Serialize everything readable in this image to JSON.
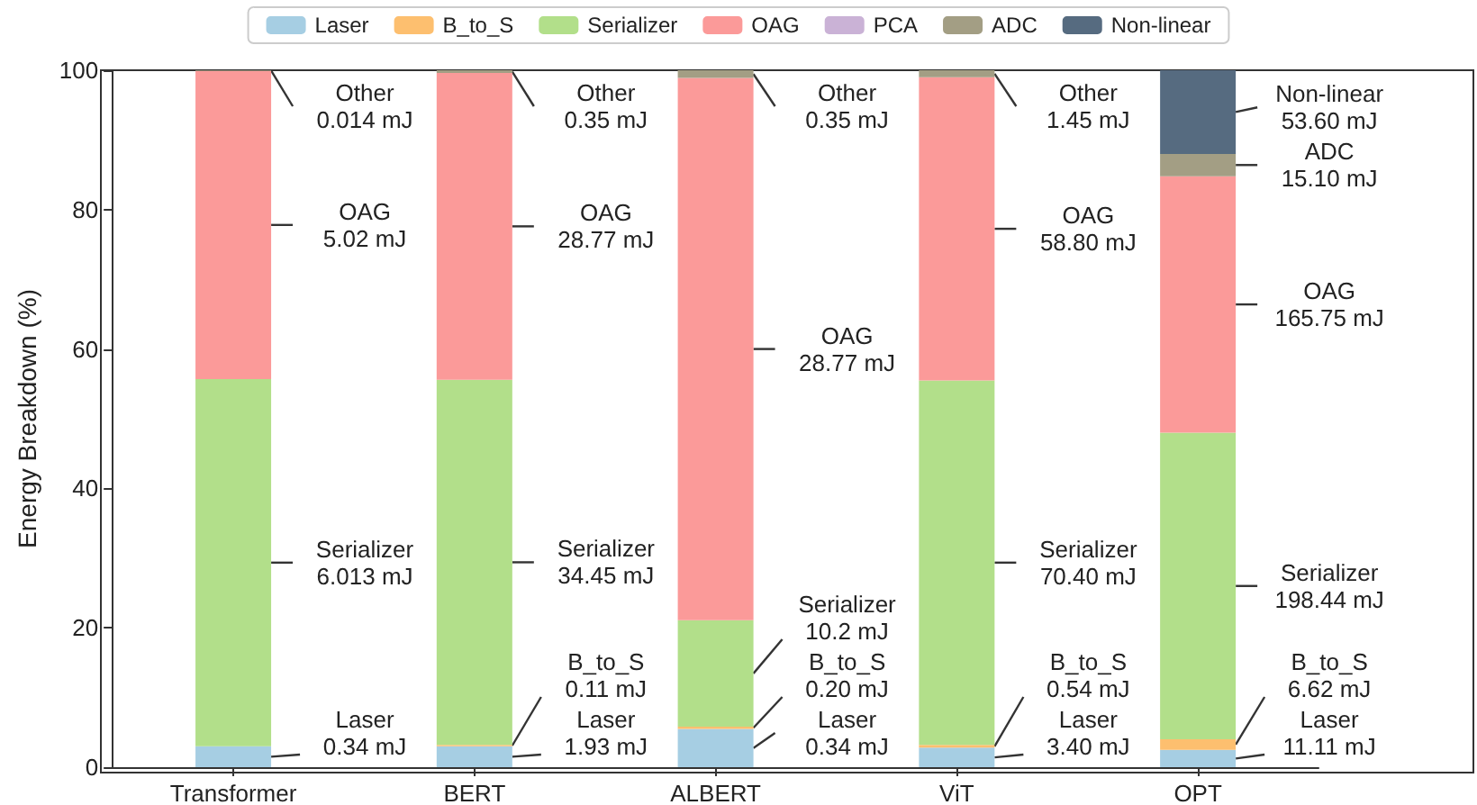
{
  "chart_data": {
    "type": "bar",
    "stacked": true,
    "ylabel": "Energy Breakdown (%)",
    "categories": [
      "Transformer",
      "BERT",
      "ALBERT",
      "ViT",
      "OPT"
    ],
    "ylim": [
      0,
      100
    ],
    "yticks": [
      0,
      20,
      40,
      60,
      80,
      100
    ],
    "grid": false,
    "legend": "top",
    "series": [
      {
        "name": "Laser",
        "color": "#a6cee3",
        "values": [
          3.0,
          3.0,
          5.5,
          2.8,
          2.5
        ],
        "value_labels": [
          "Laser\n0.34 mJ",
          "Laser\n1.93 mJ",
          "Laser\n0.34 mJ",
          "Laser\n3.40 mJ",
          "Laser\n11.11 mJ"
        ]
      },
      {
        "name": "B_to_S",
        "color": "#fdbf6f",
        "values": [
          0,
          0.2,
          0.3,
          0.4,
          1.5
        ],
        "value_labels": [
          null,
          "B_to_S\n0.11 mJ",
          "B_to_S\n0.20 mJ",
          "B_to_S\n0.54 mJ",
          "B_to_S\n6.62 mJ"
        ]
      },
      {
        "name": "Serializer",
        "color": "#b2df8a",
        "values": [
          52.7,
          52.4,
          15.3,
          52.3,
          44.0
        ],
        "value_labels": [
          "Serializer\n6.013 mJ",
          "Serializer\n34.45 mJ",
          "Serializer\n10.2 mJ",
          "Serializer\n70.40 mJ",
          "Serializer\n198.44 mJ"
        ]
      },
      {
        "name": "OAG",
        "color": "#fb9a99",
        "values": [
          44.2,
          44.0,
          77.8,
          43.5,
          36.8
        ],
        "value_labels": [
          "OAG\n5.02 mJ",
          "OAG\n28.77 mJ",
          "OAG\n28.77 mJ",
          "OAG\n58.80 mJ",
          "OAG\n165.75 mJ"
        ]
      },
      {
        "name": "PCA",
        "color": "#cab2d6",
        "values": [
          0,
          0,
          0,
          0,
          0
        ]
      },
      {
        "name": "ADC",
        "color": "#a39e84",
        "values": [
          0.1,
          0.4,
          1.1,
          1.0,
          3.2
        ],
        "value_labels": [
          "Other\n0.014 mJ",
          "Other\n0.35 mJ",
          "Other\n0.35 mJ",
          "Other\n1.45 mJ",
          "ADC\n15.10 mJ"
        ]
      },
      {
        "name": "Non-linear",
        "color": "#566b80",
        "values": [
          0,
          0,
          0,
          0,
          12.0
        ],
        "value_labels": [
          null,
          null,
          null,
          null,
          "Non-linear\n53.60 mJ"
        ]
      }
    ]
  }
}
